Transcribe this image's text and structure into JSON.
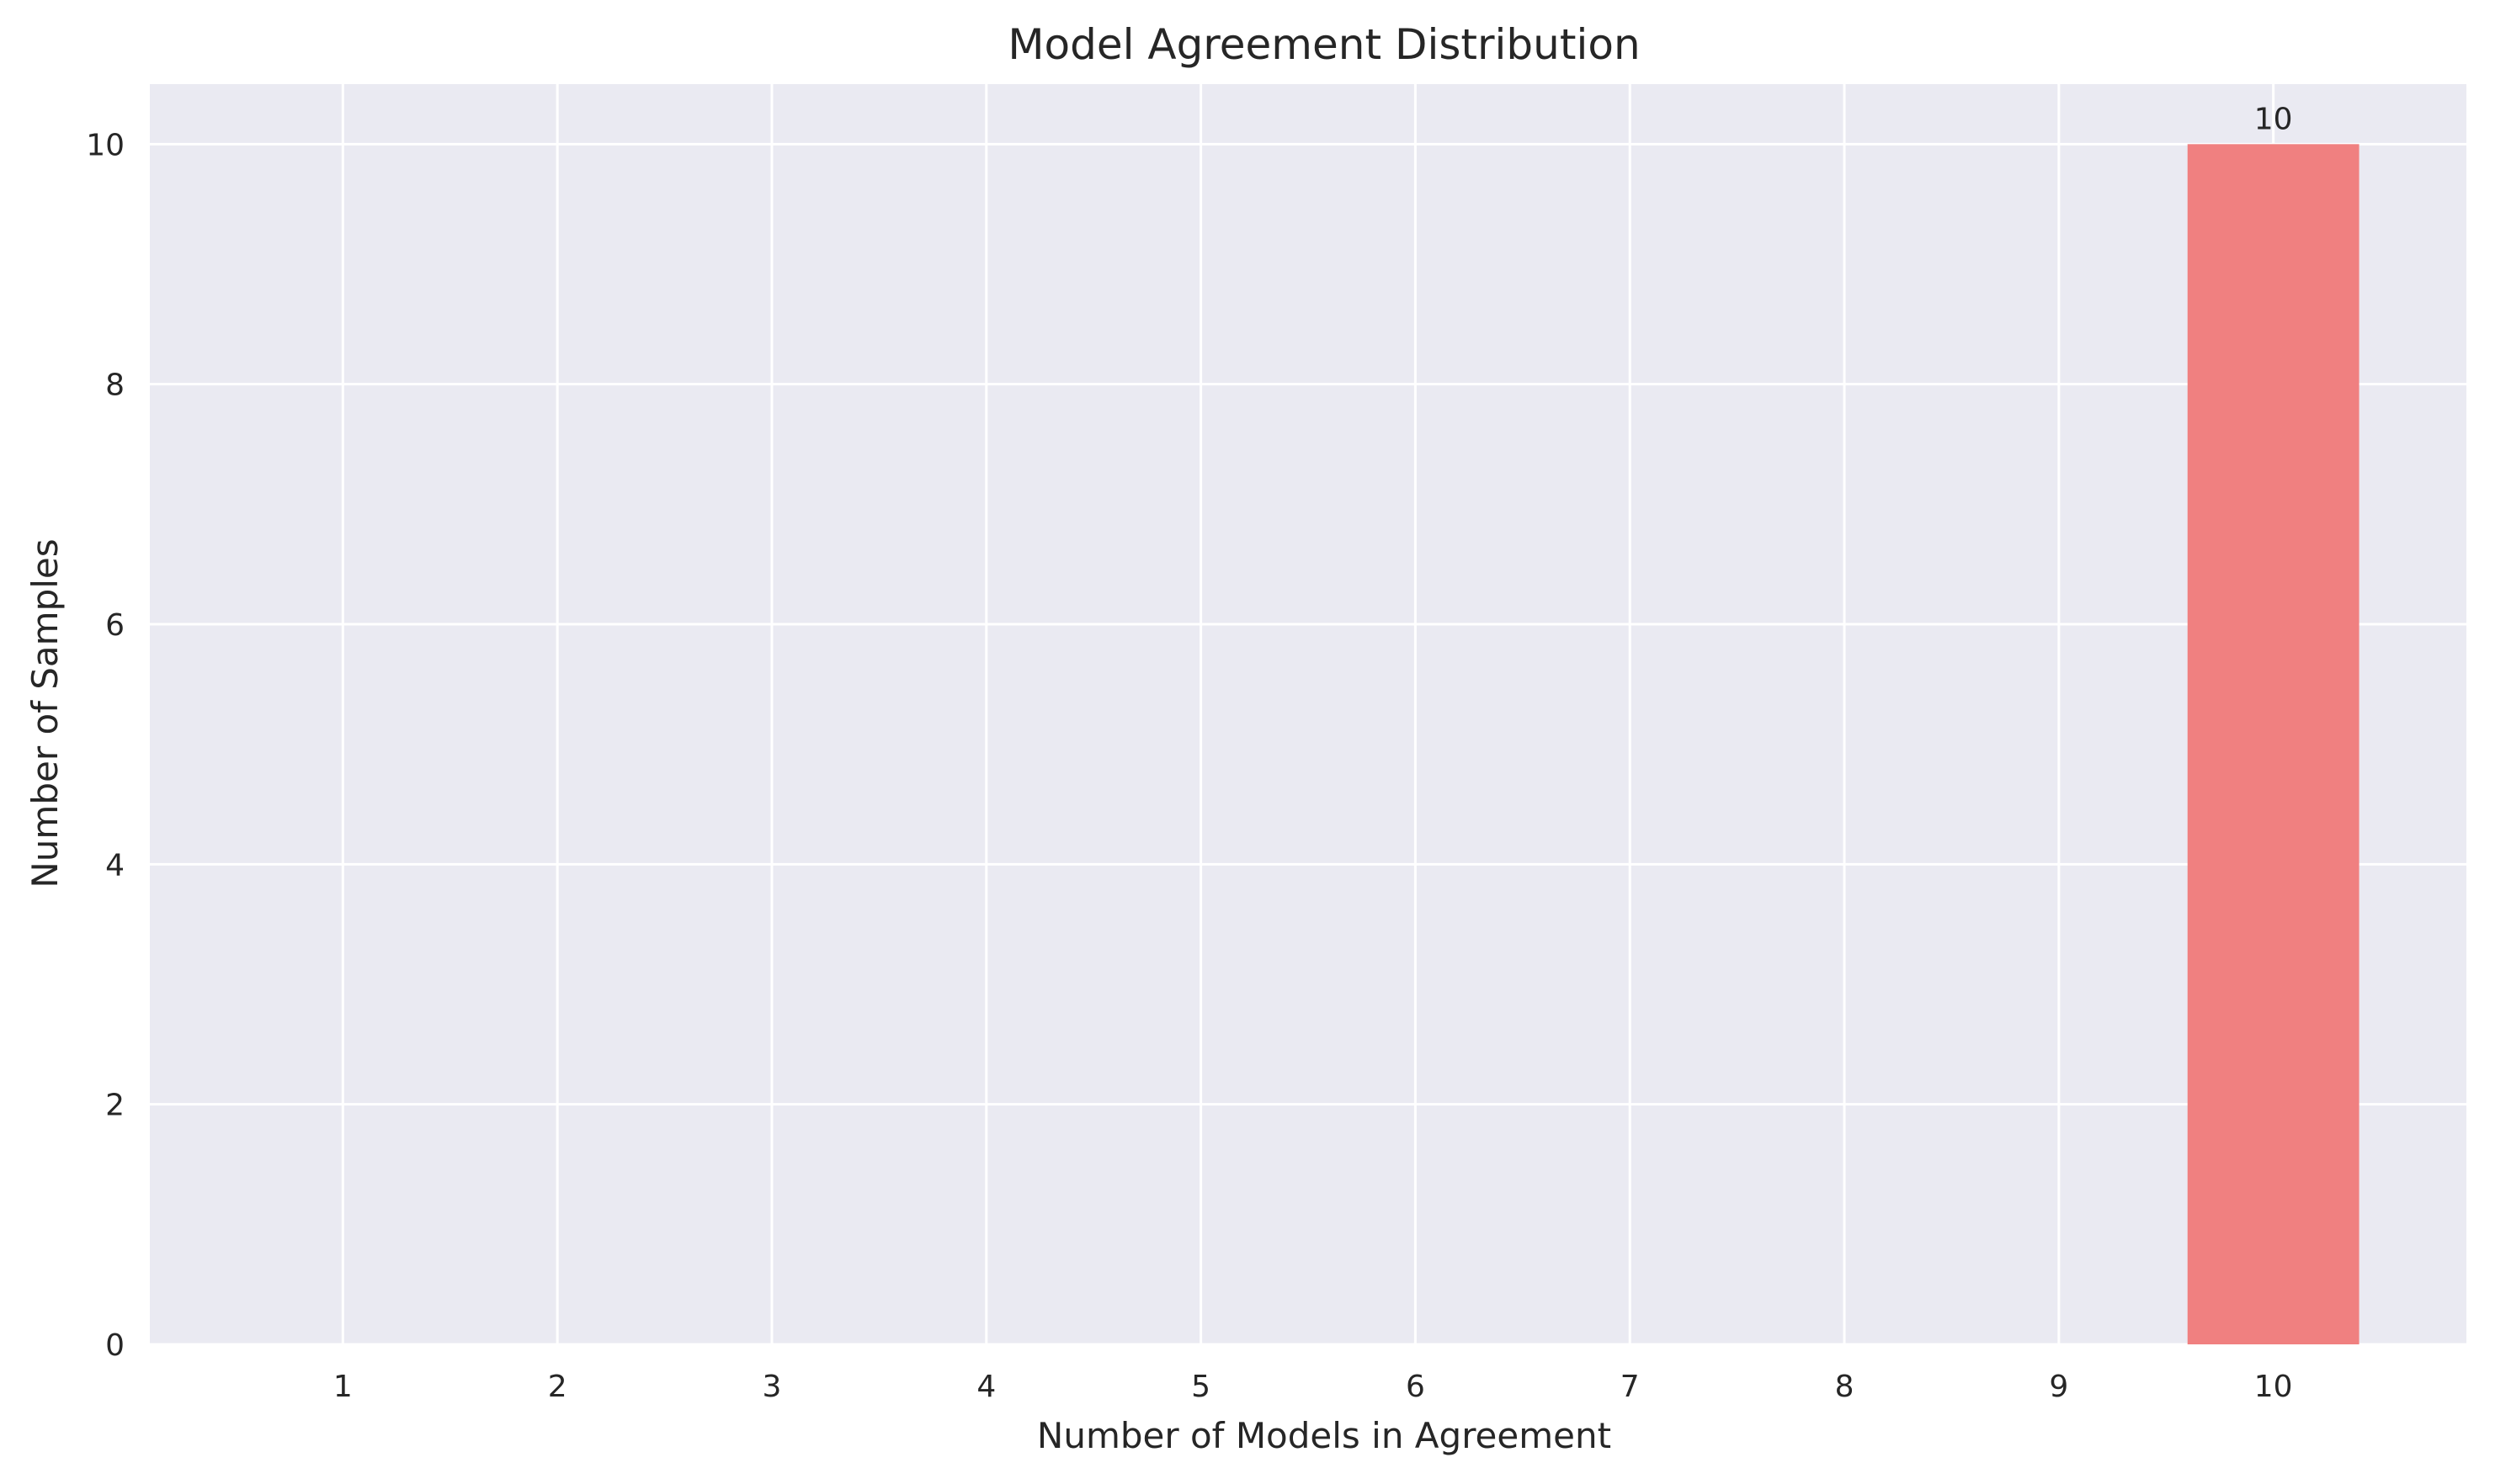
{
  "chart_data": {
    "type": "bar",
    "title": "Model Agreement Distribution",
    "xlabel": "Number of Models in Agreement",
    "ylabel": "Number of Samples",
    "categories": [
      "1",
      "2",
      "3",
      "4",
      "5",
      "6",
      "7",
      "8",
      "9",
      "10"
    ],
    "values": [
      0,
      0,
      0,
      0,
      0,
      0,
      0,
      0,
      0,
      10
    ],
    "data_labels": [
      "",
      "",
      "",
      "",
      "",
      "",
      "",
      "",
      "",
      "10"
    ],
    "xlim": [
      0.1,
      10.9
    ],
    "ylim": [
      0,
      10.5
    ],
    "yticks": [
      0,
      2,
      4,
      6,
      8,
      10
    ],
    "grid": true,
    "colors": {
      "bar": "#f08080",
      "background": "#eaeaf2",
      "grid": "#ffffff",
      "text": "#262626"
    }
  }
}
